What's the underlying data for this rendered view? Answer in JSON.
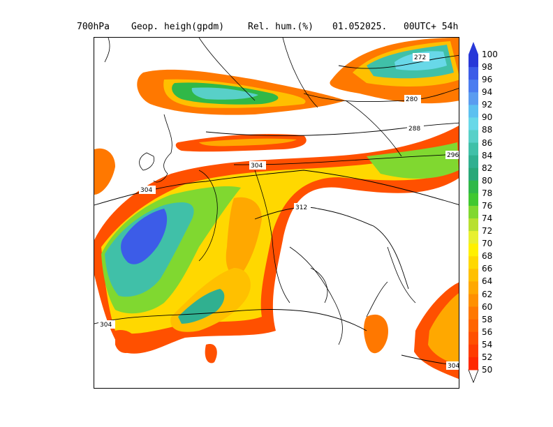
{
  "header": {
    "level": "700hPa",
    "field1": "Geop. heigh(gpdm)",
    "field2": "Rel. hum.(%)",
    "date": "01.052025.",
    "run": "00UTC+ 54h"
  },
  "contour_labels": [
    "272",
    "280",
    "288",
    "296",
    "304",
    "304",
    "312",
    "304",
    "304"
  ],
  "colorbar": {
    "labels": [
      "100",
      "98",
      "96",
      "94",
      "92",
      "90",
      "88",
      "86",
      "84",
      "82",
      "80",
      "78",
      "76",
      "74",
      "72",
      "70",
      "68",
      "66",
      "64",
      "62",
      "60",
      "58",
      "56",
      "54",
      "52",
      "50"
    ],
    "colors": [
      "#2838d8",
      "#3c5ce8",
      "#4a7cf0",
      "#5a9cf0",
      "#5cc0f0",
      "#68d8e8",
      "#58d0c8",
      "#40c0a8",
      "#30b090",
      "#28a878",
      "#30b848",
      "#40c830",
      "#80d830",
      "#b8e030",
      "#e8f030",
      "#fff000",
      "#ffd800",
      "#ffc000",
      "#ffa800",
      "#ff9000",
      "#ff7800",
      "#ff6400",
      "#ff5000",
      "#ff3c00",
      "#ff2800"
    ]
  },
  "icons": {
    "top_arrow": "triangle-up-icon",
    "bottom_arrow": "triangle-down-icon"
  }
}
